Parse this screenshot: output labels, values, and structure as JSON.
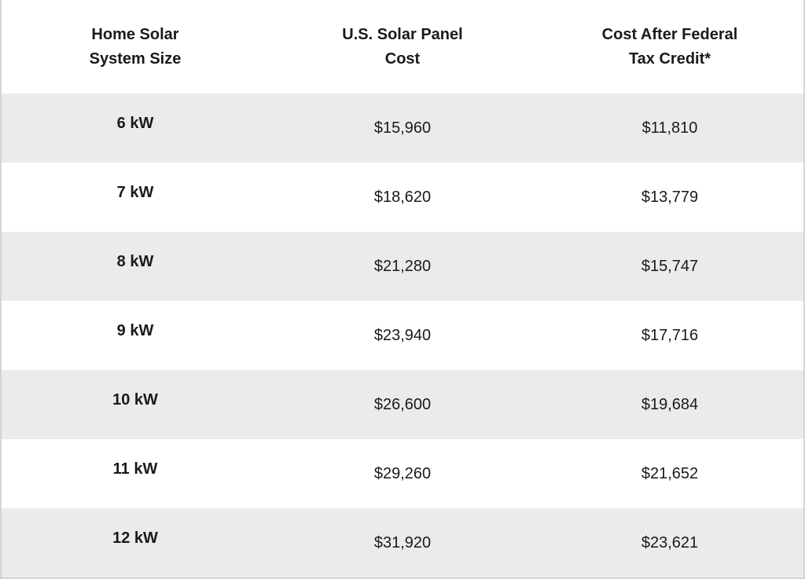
{
  "table": {
    "headers": [
      "Home Solar System Size",
      "U.S. Solar Panel Cost",
      "Cost After Federal Tax Credit*"
    ],
    "rows": [
      [
        "6 kW",
        "$15,960",
        "$11,810"
      ],
      [
        "7 kW",
        "$18,620",
        "$13,779"
      ],
      [
        "8 kW",
        "$21,280",
        "$15,747"
      ],
      [
        "9 kW",
        "$23,940",
        "$17,716"
      ],
      [
        "10 kW",
        "$26,600",
        "$19,684"
      ],
      [
        "11 kW",
        "$29,260",
        "$21,652"
      ],
      [
        "12 kW",
        "$31,920",
        "$23,621"
      ]
    ]
  }
}
